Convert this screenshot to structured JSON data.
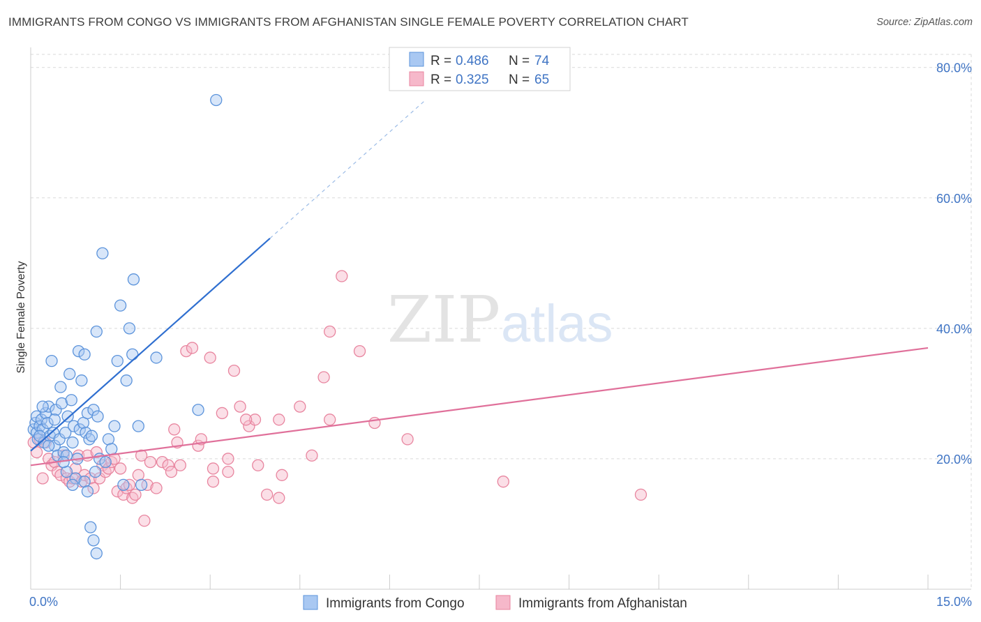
{
  "header": {
    "title": "IMMIGRANTS FROM CONGO VS IMMIGRANTS FROM AFGHANISTAN SINGLE FEMALE POVERTY CORRELATION CHART",
    "source": "Source: ZipAtlas.com"
  },
  "watermark": {
    "zip": "ZIP",
    "atlas": "atlas"
  },
  "colors": {
    "congo_fill": "#a9c8f2",
    "congo_stroke": "#5b93db",
    "congo_line": "#2f6fd0",
    "afgh_fill": "#f6b8ca",
    "afgh_stroke": "#e8859f",
    "afgh_line": "#e0709a",
    "axis_text": "#3f74c4",
    "grid": "#d9d9d9"
  },
  "legend": {
    "rows": [
      {
        "r_label": "R = ",
        "r_value": "0.486",
        "n_label": "N = ",
        "n_value": "74"
      },
      {
        "r_label": "R = ",
        "r_value": "0.325",
        "n_label": "N = ",
        "n_value": "65"
      }
    ]
  },
  "chart_data": {
    "type": "scatter",
    "title": "IMMIGRANTS FROM CONGO VS IMMIGRANTS FROM AFGHANISTAN SINGLE FEMALE POVERTY CORRELATION CHART",
    "xlabel": "",
    "ylabel": "Single Female Poverty",
    "xlim": [
      0,
      15
    ],
    "ylim": [
      0,
      82
    ],
    "x_ticks": [
      "0.0%",
      "15.0%"
    ],
    "y_ticks": [
      {
        "value": 20,
        "label": "20.0%"
      },
      {
        "value": 40,
        "label": "40.0%"
      },
      {
        "value": 60,
        "label": "60.0%"
      },
      {
        "value": 80,
        "label": "80.0%"
      }
    ],
    "legend_position": "top-center",
    "series": [
      {
        "name": "Immigrants from Congo",
        "r": 0.486,
        "n": 74,
        "trend": {
          "x0": 0.0,
          "y0": 21.2,
          "x1": 4.0,
          "y1": 53.8,
          "dash_to_x": 6.6,
          "dash_to_y": 75.0
        },
        "points": [
          [
            0.05,
            24.5
          ],
          [
            0.08,
            25.5
          ],
          [
            0.1,
            26.5
          ],
          [
            0.1,
            24.0
          ],
          [
            0.12,
            23.0
          ],
          [
            0.15,
            25.0
          ],
          [
            0.18,
            26.0
          ],
          [
            0.2,
            24.5
          ],
          [
            0.22,
            22.5
          ],
          [
            0.25,
            27.0
          ],
          [
            0.28,
            25.5
          ],
          [
            0.3,
            28.0
          ],
          [
            0.32,
            23.5
          ],
          [
            0.35,
            35.0
          ],
          [
            0.38,
            24.0
          ],
          [
            0.4,
            22.0
          ],
          [
            0.42,
            27.5
          ],
          [
            0.45,
            20.5
          ],
          [
            0.48,
            23.0
          ],
          [
            0.5,
            31.0
          ],
          [
            0.52,
            28.5
          ],
          [
            0.55,
            21.0
          ],
          [
            0.58,
            24.0
          ],
          [
            0.6,
            20.5
          ],
          [
            0.62,
            26.5
          ],
          [
            0.65,
            33.0
          ],
          [
            0.68,
            29.0
          ],
          [
            0.7,
            22.5
          ],
          [
            0.72,
            25.0
          ],
          [
            0.75,
            17.0
          ],
          [
            0.78,
            20.0
          ],
          [
            0.8,
            36.5
          ],
          [
            0.82,
            24.5
          ],
          [
            0.85,
            32.0
          ],
          [
            0.88,
            25.5
          ],
          [
            0.9,
            36.0
          ],
          [
            0.92,
            24.0
          ],
          [
            0.95,
            27.0
          ],
          [
            0.98,
            23.0
          ],
          [
            1.0,
            9.5
          ],
          [
            1.02,
            23.5
          ],
          [
            1.05,
            27.5
          ],
          [
            1.08,
            18.0
          ],
          [
            1.1,
            39.5
          ],
          [
            1.12,
            26.5
          ],
          [
            1.15,
            20.0
          ],
          [
            1.2,
            51.5
          ],
          [
            1.25,
            19.5
          ],
          [
            1.3,
            23.0
          ],
          [
            1.35,
            21.5
          ],
          [
            1.4,
            25.0
          ],
          [
            1.45,
            35.0
          ],
          [
            1.5,
            43.5
          ],
          [
            1.55,
            16.0
          ],
          [
            1.6,
            32.0
          ],
          [
            1.65,
            40.0
          ],
          [
            1.7,
            36.0
          ],
          [
            1.72,
            47.5
          ],
          [
            1.8,
            25.0
          ],
          [
            1.85,
            16.0
          ],
          [
            2.1,
            35.5
          ],
          [
            0.9,
            16.5
          ],
          [
            0.7,
            16.0
          ],
          [
            0.6,
            18.0
          ],
          [
            0.95,
            15.0
          ],
          [
            1.05,
            7.5
          ],
          [
            1.1,
            5.5
          ],
          [
            0.4,
            26.0
          ],
          [
            0.3,
            22.0
          ],
          [
            0.2,
            28.0
          ],
          [
            2.8,
            27.5
          ],
          [
            3.1,
            75.0
          ],
          [
            0.55,
            19.5
          ],
          [
            0.15,
            23.5
          ]
        ]
      },
      {
        "name": "Immigrants from Afghanistan",
        "r": 0.325,
        "n": 65,
        "trend": {
          "x0": 0.0,
          "y0": 19.0,
          "x1": 15.0,
          "y1": 37.0
        },
        "points": [
          [
            0.05,
            22.5
          ],
          [
            0.1,
            21.0
          ],
          [
            0.15,
            23.0
          ],
          [
            0.2,
            17.0
          ],
          [
            0.25,
            22.5
          ],
          [
            0.3,
            20.0
          ],
          [
            0.35,
            19.0
          ],
          [
            0.4,
            19.5
          ],
          [
            0.45,
            18.0
          ],
          [
            0.5,
            17.5
          ],
          [
            0.55,
            20.5
          ],
          [
            0.6,
            17.0
          ],
          [
            0.65,
            16.5
          ],
          [
            0.7,
            17.0
          ],
          [
            0.75,
            18.5
          ],
          [
            0.8,
            20.5
          ],
          [
            0.85,
            16.5
          ],
          [
            0.9,
            17.5
          ],
          [
            0.95,
            20.5
          ],
          [
            1.0,
            17.0
          ],
          [
            1.05,
            15.5
          ],
          [
            1.1,
            21.0
          ],
          [
            1.15,
            17.0
          ],
          [
            1.2,
            19.0
          ],
          [
            1.25,
            18.0
          ],
          [
            1.3,
            18.5
          ],
          [
            1.35,
            19.5
          ],
          [
            1.4,
            20.0
          ],
          [
            1.45,
            15.0
          ],
          [
            1.5,
            18.5
          ],
          [
            1.55,
            14.5
          ],
          [
            1.6,
            15.5
          ],
          [
            1.65,
            16.0
          ],
          [
            1.7,
            14.0
          ],
          [
            1.75,
            14.5
          ],
          [
            1.8,
            17.5
          ],
          [
            1.85,
            20.5
          ],
          [
            1.9,
            10.5
          ],
          [
            1.95,
            16.0
          ],
          [
            2.0,
            19.5
          ],
          [
            2.1,
            15.5
          ],
          [
            2.2,
            19.5
          ],
          [
            2.3,
            19.0
          ],
          [
            2.4,
            24.5
          ],
          [
            2.45,
            22.5
          ],
          [
            2.5,
            19.0
          ],
          [
            2.6,
            36.5
          ],
          [
            2.7,
            37.0
          ],
          [
            2.8,
            22.0
          ],
          [
            2.85,
            23.0
          ],
          [
            3.0,
            35.5
          ],
          [
            3.05,
            18.5
          ],
          [
            3.2,
            27.0
          ],
          [
            3.3,
            20.0
          ],
          [
            3.4,
            33.5
          ],
          [
            3.5,
            28.0
          ],
          [
            3.65,
            25.0
          ],
          [
            3.8,
            19.0
          ],
          [
            3.95,
            14.5
          ],
          [
            4.2,
            17.5
          ],
          [
            4.5,
            28.0
          ],
          [
            4.7,
            20.5
          ],
          [
            4.9,
            32.5
          ],
          [
            5.0,
            39.5
          ],
          [
            5.2,
            48.0
          ]
        ],
        "extra_points": [
          [
            5.5,
            36.5
          ],
          [
            5.75,
            25.5
          ],
          [
            6.3,
            23.0
          ],
          [
            7.9,
            16.5
          ],
          [
            10.2,
            14.5
          ],
          [
            4.15,
            26.0
          ],
          [
            3.75,
            26.0
          ],
          [
            3.6,
            26.0
          ],
          [
            5.0,
            26.0
          ],
          [
            3.3,
            18.0
          ],
          [
            4.15,
            14.0
          ],
          [
            2.35,
            18.0
          ],
          [
            3.05,
            16.5
          ]
        ]
      }
    ]
  },
  "bottom_legend": {
    "items": [
      {
        "label": "Immigrants from Congo"
      },
      {
        "label": "Immigrants from Afghanistan"
      }
    ]
  }
}
